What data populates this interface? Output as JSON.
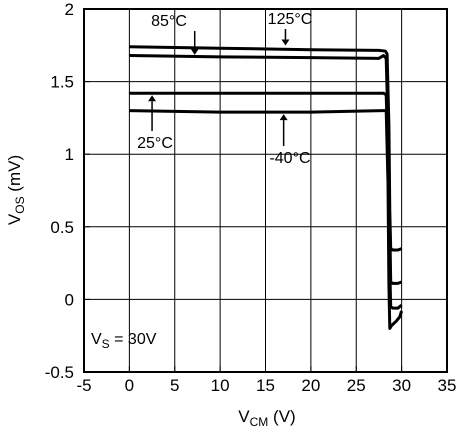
{
  "chart_data": {
    "type": "line",
    "title": "",
    "xlabel": {
      "main": "V",
      "sub": "CM",
      "unit": " (V)"
    },
    "ylabel": {
      "main": "V",
      "sub": "OS",
      "unit": " (mV)"
    },
    "xlim": [
      -5,
      35
    ],
    "ylim": [
      -0.5,
      2
    ],
    "xticks": [
      -5,
      0,
      5,
      10,
      15,
      20,
      25,
      30,
      35
    ],
    "xtick_labels": [
      "-5",
      "0",
      "5",
      "10",
      "15",
      "20",
      "25",
      "30",
      "35"
    ],
    "yticks": [
      -0.5,
      0,
      0.5,
      1,
      1.5,
      2
    ],
    "ytick_labels": [
      "-0.5",
      "0",
      "0.5",
      "1",
      "1.5",
      "2"
    ],
    "grid": true,
    "series": [
      {
        "name": "125°C",
        "x": [
          0,
          10,
          20,
          27.5,
          28.2,
          28.4,
          28.6,
          28.7,
          28.8,
          29.0,
          29.6,
          30.0
        ],
        "y": [
          1.74,
          1.73,
          1.72,
          1.715,
          1.71,
          1.69,
          1.2,
          0.6,
          0.35,
          0.34,
          0.34,
          0.35
        ]
      },
      {
        "name": "85°C",
        "x": [
          0,
          10,
          20,
          27.5,
          28.0,
          28.3,
          28.5,
          28.7,
          28.8,
          29.0,
          29.6,
          30.0
        ],
        "y": [
          1.68,
          1.67,
          1.665,
          1.66,
          1.68,
          1.66,
          1.2,
          0.5,
          0.12,
          0.11,
          0.11,
          0.12
        ]
      },
      {
        "name": "25°C",
        "x": [
          0,
          10,
          20,
          28.0,
          28.3,
          28.5,
          28.7,
          28.8,
          29.0,
          29.6,
          30.0
        ],
        "y": [
          1.42,
          1.42,
          1.42,
          1.42,
          1.41,
          1.0,
          0.2,
          -0.05,
          -0.06,
          -0.06,
          -0.04
        ]
      },
      {
        "name": "-40°C",
        "x": [
          0,
          10,
          20,
          28.0,
          28.3,
          28.5,
          28.6,
          28.7,
          28.9,
          29.4,
          29.8,
          30.0
        ],
        "y": [
          1.3,
          1.29,
          1.29,
          1.3,
          1.3,
          0.8,
          0.1,
          -0.2,
          -0.18,
          -0.15,
          -0.12,
          -0.08
        ]
      }
    ],
    "annotations": [
      {
        "text": "125°C",
        "series": "125°C",
        "arrow_to": [
          17.2,
          1.735
        ]
      },
      {
        "text": "85°C",
        "series": "85°C",
        "arrow_to": [
          7.2,
          1.67
        ]
      },
      {
        "text": "25°C",
        "series": "25°C",
        "arrow_to": [
          2.5,
          1.42
        ]
      },
      {
        "text": "-40°C",
        "series": "-40°C",
        "arrow_to": [
          17.0,
          1.29
        ]
      }
    ],
    "inset_note": {
      "main": "V",
      "sub": "S",
      "rest": " = 30V"
    }
  }
}
